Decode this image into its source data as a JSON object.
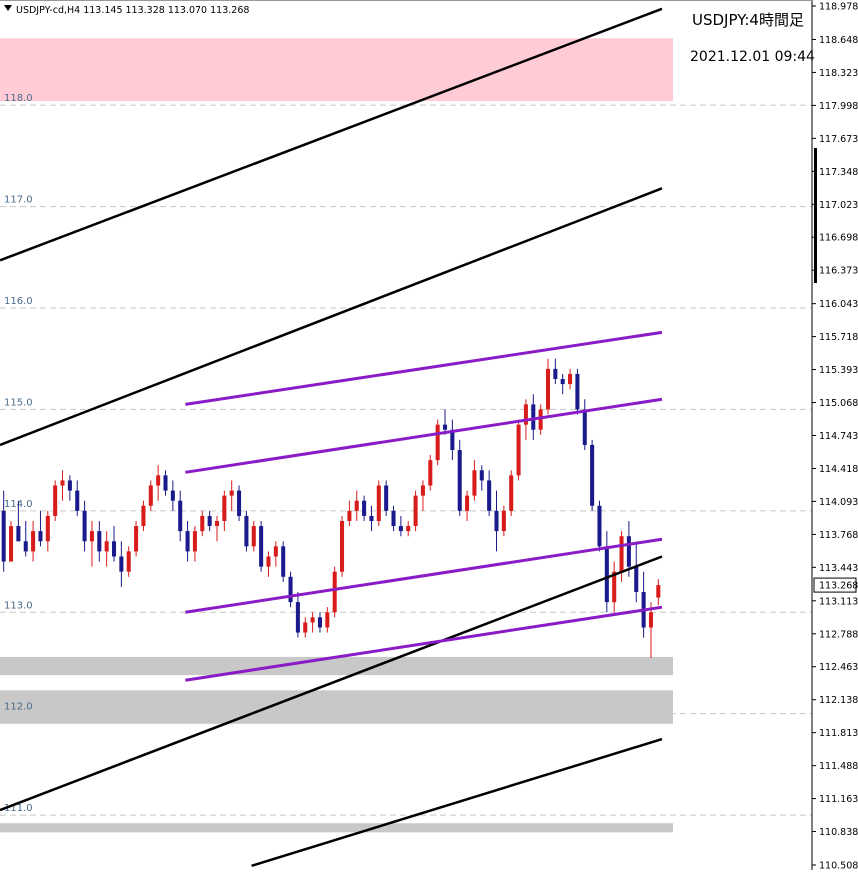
{
  "header": {
    "symbol_info": "USDJPY-cd,H4  113.145 113.328 113.070 113.268",
    "title": "USDJPY:4時間足",
    "datetime": "2021.12.01 09:44",
    "current_price_label": "113.268"
  },
  "colors": {
    "bull": "#d81b1b",
    "bear": "#1a1a8c",
    "channel_black": "#000000",
    "channel_purple": "#8a1cc8",
    "resistance_zone": "#ffccd5",
    "support_zone": "#c8c8c8",
    "price_tag_bg": "#ffffff"
  },
  "chart_data": {
    "type": "candlestick",
    "symbol": "USDJPY-cd",
    "timeframe": "H4",
    "ohlc_last": {
      "open": 113.145,
      "high": 113.328,
      "low": 113.07,
      "close": 113.268
    },
    "ylim": [
      110.508,
      118.978
    ],
    "price_axis_ticks": [
      "118.978",
      "118.648",
      "118.323",
      "117.998",
      "117.673",
      "117.348",
      "117.023",
      "116.698",
      "116.373",
      "116.043",
      "115.718",
      "115.393",
      "115.068",
      "114.743",
      "114.418",
      "114.093",
      "113.768",
      "113.443",
      "113.113",
      "112.788",
      "112.463",
      "112.138",
      "111.813",
      "111.488",
      "111.163",
      "110.838",
      "110.508"
    ],
    "grid_levels": [
      {
        "label": "118.0",
        "value": 118.0
      },
      {
        "label": "117.0",
        "value": 117.0
      },
      {
        "label": "116.0",
        "value": 116.0
      },
      {
        "label": "115.0",
        "value": 115.0
      },
      {
        "label": "114.0",
        "value": 114.0
      },
      {
        "label": "113.0",
        "value": 113.0
      },
      {
        "label": "112.0",
        "value": 112.0
      },
      {
        "label": "111.0",
        "value": 111.0
      }
    ],
    "zones": [
      {
        "kind": "resistance",
        "from": 118.04,
        "to": 118.66
      },
      {
        "kind": "support",
        "from": 112.38,
        "to": 112.56
      },
      {
        "kind": "support",
        "from": 111.9,
        "to": 112.23
      },
      {
        "kind": "support",
        "from": 110.83,
        "to": 110.92
      }
    ],
    "trendlines": [
      {
        "name": "black-1",
        "color": "black",
        "start": [
          0,
          116.47
        ],
        "end": 118.95
      },
      {
        "name": "black-2",
        "color": "black",
        "start": [
          0,
          114.65
        ],
        "end": 117.18
      },
      {
        "name": "black-3",
        "color": "black",
        "start": [
          0,
          111.05
        ],
        "end": 113.55
      },
      {
        "name": "black-4",
        "color": "black",
        "start": [
          0.38,
          110.5
        ],
        "end": 111.75
      },
      {
        "name": "purple-1",
        "color": "purple",
        "start": [
          0.28,
          115.05
        ],
        "end": 115.76
      },
      {
        "name": "purple-2",
        "color": "purple",
        "start": [
          0.28,
          114.38
        ],
        "end": 115.1
      },
      {
        "name": "purple-3",
        "color": "purple",
        "start": [
          0.28,
          113.0
        ],
        "end": 113.72
      },
      {
        "name": "purple-4",
        "color": "purple",
        "start": [
          0.28,
          112.33
        ],
        "end": 113.05
      }
    ],
    "candles": [
      [
        114.0,
        114.2,
        113.4,
        113.5
      ],
      [
        113.5,
        113.9,
        113.5,
        113.85
      ],
      [
        113.85,
        114.1,
        113.7,
        113.7
      ],
      [
        113.7,
        113.9,
        113.55,
        113.6
      ],
      [
        113.6,
        113.9,
        113.5,
        113.8
      ],
      [
        113.8,
        114.0,
        113.65,
        113.7
      ],
      [
        113.7,
        114.0,
        113.6,
        113.95
      ],
      [
        113.95,
        114.3,
        113.9,
        114.25
      ],
      [
        114.25,
        114.4,
        114.1,
        114.3
      ],
      [
        114.3,
        114.35,
        114.1,
        114.2
      ],
      [
        114.2,
        114.3,
        113.95,
        114.0
      ],
      [
        114.0,
        114.1,
        113.6,
        113.7
      ],
      [
        113.7,
        113.9,
        113.45,
        113.8
      ],
      [
        113.8,
        113.9,
        113.5,
        113.6
      ],
      [
        113.6,
        113.8,
        113.45,
        113.7
      ],
      [
        113.7,
        113.85,
        113.5,
        113.55
      ],
      [
        113.55,
        113.7,
        113.25,
        113.4
      ],
      [
        113.4,
        113.65,
        113.35,
        113.6
      ],
      [
        113.6,
        113.9,
        113.55,
        113.85
      ],
      [
        113.85,
        114.1,
        113.8,
        114.05
      ],
      [
        114.05,
        114.3,
        114.0,
        114.25
      ],
      [
        114.25,
        114.45,
        114.1,
        114.35
      ],
      [
        114.35,
        114.4,
        114.15,
        114.2
      ],
      [
        114.2,
        114.3,
        114.0,
        114.1
      ],
      [
        114.1,
        114.2,
        113.7,
        113.8
      ],
      [
        113.8,
        113.9,
        113.5,
        113.6
      ],
      [
        113.6,
        113.85,
        113.5,
        113.8
      ],
      [
        113.8,
        114.0,
        113.75,
        113.95
      ],
      [
        113.95,
        114.0,
        113.8,
        113.85
      ],
      [
        113.85,
        113.95,
        113.7,
        113.9
      ],
      [
        113.9,
        114.2,
        113.8,
        114.15
      ],
      [
        114.15,
        114.3,
        114.0,
        114.2
      ],
      [
        114.2,
        114.25,
        113.9,
        113.95
      ],
      [
        113.95,
        114.0,
        113.6,
        113.65
      ],
      [
        113.65,
        113.9,
        113.6,
        113.85
      ],
      [
        113.85,
        113.9,
        113.4,
        113.45
      ],
      [
        113.45,
        113.6,
        113.35,
        113.55
      ],
      [
        113.55,
        113.7,
        113.45,
        113.65
      ],
      [
        113.65,
        113.7,
        113.3,
        113.35
      ],
      [
        113.35,
        113.4,
        113.05,
        113.1
      ],
      [
        113.1,
        113.2,
        112.75,
        112.8
      ],
      [
        112.8,
        112.95,
        112.75,
        112.9
      ],
      [
        112.9,
        113.0,
        112.8,
        112.95
      ],
      [
        112.95,
        113.0,
        112.8,
        112.85
      ],
      [
        112.85,
        113.05,
        112.8,
        113.0
      ],
      [
        113.0,
        113.45,
        112.95,
        113.4
      ],
      [
        113.4,
        113.95,
        113.35,
        113.9
      ],
      [
        113.9,
        114.1,
        113.85,
        114.0
      ],
      [
        114.0,
        114.2,
        113.9,
        114.1
      ],
      [
        114.1,
        114.15,
        113.9,
        113.95
      ],
      [
        113.95,
        114.05,
        113.8,
        113.9
      ],
      [
        113.9,
        114.3,
        113.85,
        114.25
      ],
      [
        114.25,
        114.3,
        113.95,
        114.0
      ],
      [
        114.0,
        114.05,
        113.8,
        113.85
      ],
      [
        113.85,
        113.95,
        113.75,
        113.8
      ],
      [
        113.8,
        113.9,
        113.75,
        113.85
      ],
      [
        113.85,
        114.2,
        113.8,
        114.15
      ],
      [
        114.15,
        114.3,
        114.0,
        114.25
      ],
      [
        114.25,
        114.55,
        114.2,
        114.5
      ],
      [
        114.5,
        114.9,
        114.45,
        114.85
      ],
      [
        114.85,
        115.0,
        114.75,
        114.8
      ],
      [
        114.8,
        114.9,
        114.5,
        114.6
      ],
      [
        114.6,
        114.7,
        113.95,
        114.0
      ],
      [
        114.0,
        114.2,
        113.9,
        114.15
      ],
      [
        114.15,
        114.5,
        114.1,
        114.4
      ],
      [
        114.4,
        114.45,
        114.2,
        114.3
      ],
      [
        114.3,
        114.4,
        113.95,
        114.0
      ],
      [
        114.0,
        114.2,
        113.6,
        113.8
      ],
      [
        113.8,
        114.05,
        113.75,
        114.0
      ],
      [
        114.0,
        114.4,
        113.95,
        114.35
      ],
      [
        114.35,
        114.9,
        114.3,
        114.85
      ],
      [
        114.85,
        115.1,
        114.7,
        115.05
      ],
      [
        115.05,
        115.15,
        114.7,
        114.8
      ],
      [
        114.8,
        115.05,
        114.75,
        115.0
      ],
      [
        115.0,
        115.5,
        114.95,
        115.4
      ],
      [
        115.4,
        115.5,
        115.25,
        115.3
      ],
      [
        115.3,
        115.35,
        115.15,
        115.25
      ],
      [
        115.25,
        115.4,
        115.2,
        115.35
      ],
      [
        115.35,
        115.4,
        114.95,
        115.0
      ],
      [
        115.0,
        115.1,
        114.6,
        114.65
      ],
      [
        114.65,
        114.7,
        114.0,
        114.05
      ],
      [
        114.05,
        114.1,
        113.6,
        113.65
      ],
      [
        113.65,
        113.8,
        113.0,
        113.1
      ],
      [
        113.1,
        113.5,
        113.0,
        113.4
      ],
      [
        113.4,
        113.8,
        113.3,
        113.75
      ],
      [
        113.75,
        113.9,
        113.35,
        113.45
      ],
      [
        113.45,
        113.7,
        113.1,
        113.2
      ],
      [
        113.2,
        113.4,
        112.75,
        112.85
      ],
      [
        112.85,
        113.1,
        112.55,
        113.0
      ],
      [
        113.145,
        113.328,
        113.07,
        113.268
      ]
    ]
  }
}
